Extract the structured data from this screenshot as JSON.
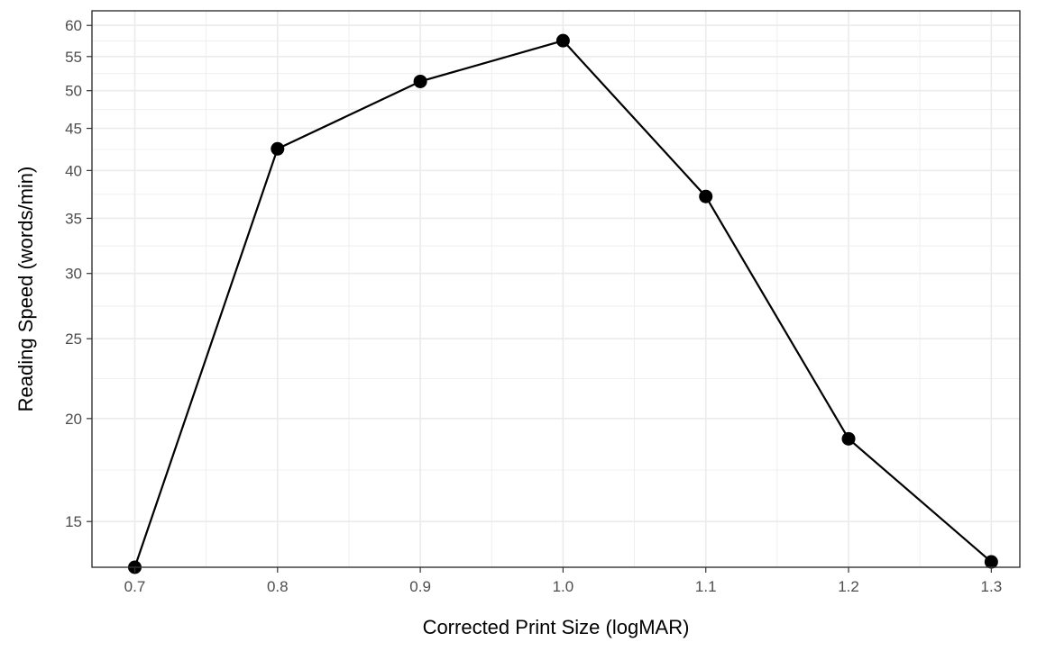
{
  "chart_data": {
    "type": "line",
    "title": "",
    "xlabel": "Corrected Print Size (logMAR)",
    "ylabel": "Reading Speed (words/min)",
    "x": [
      0.7,
      0.8,
      0.9,
      1.0,
      1.1,
      1.2,
      1.3
    ],
    "series": [
      {
        "values": [
          13.2,
          42.5,
          51.3,
          57.5,
          37.2,
          18.9,
          13.4
        ]
      }
    ],
    "xlim": [
      0.67,
      1.32
    ],
    "ylim": [
      13.2,
      62.5
    ],
    "y_scale": "log",
    "x_ticks": [
      0.7,
      0.8,
      0.9,
      1.0,
      1.1,
      1.2,
      1.3
    ],
    "x_tick_labels": [
      "0.7",
      "0.8",
      "0.9",
      "1.0",
      "1.1",
      "1.2",
      "1.3"
    ],
    "y_ticks": [
      15,
      20,
      25,
      30,
      35,
      40,
      45,
      50,
      55,
      60
    ],
    "y_tick_labels": [
      "15",
      "20",
      "25",
      "30",
      "35",
      "40",
      "45",
      "50",
      "55",
      "60"
    ],
    "grid": true,
    "legend": "none",
    "colors": {
      "line": "#000000",
      "point": "#000000",
      "grid": "#ebebeb",
      "border": "#333333"
    }
  }
}
